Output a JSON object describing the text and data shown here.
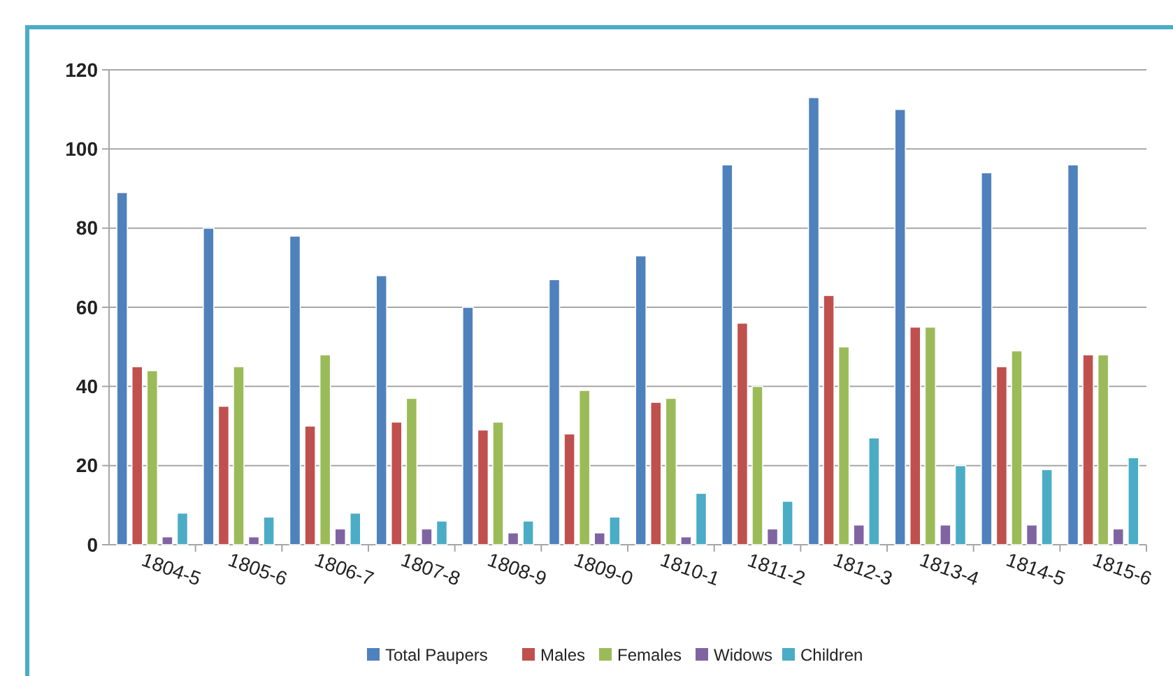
{
  "chart_data": {
    "type": "bar",
    "categories": [
      "1804-5",
      "1805-6",
      "1806-7",
      "1807-8",
      "1808-9",
      "1809-0",
      "1810-1",
      "1811-2",
      "1812-3",
      "1813-4",
      "1814-5",
      "1815-6"
    ],
    "series": [
      {
        "name": "Total Paupers",
        "color": "#4f81bd",
        "values": [
          89,
          80,
          78,
          68,
          60,
          67,
          73,
          96,
          113,
          110,
          94,
          96
        ]
      },
      {
        "name": "Males",
        "color": "#c0504d",
        "values": [
          45,
          35,
          30,
          31,
          29,
          28,
          36,
          56,
          63,
          55,
          45,
          48
        ]
      },
      {
        "name": "Females",
        "color": "#9bbb59",
        "values": [
          44,
          45,
          48,
          37,
          31,
          39,
          37,
          40,
          50,
          55,
          49,
          48
        ]
      },
      {
        "name": "Widows",
        "color": "#8064a2",
        "values": [
          2,
          2,
          4,
          4,
          3,
          3,
          2,
          4,
          5,
          5,
          5,
          4
        ]
      },
      {
        "name": "Children",
        "color": "#4bacc6",
        "values": [
          8,
          7,
          8,
          6,
          6,
          7,
          13,
          11,
          27,
          20,
          19,
          22
        ]
      }
    ],
    "ylim": [
      0,
      120
    ],
    "yticks": [
      0,
      20,
      40,
      60,
      80,
      100,
      120
    ],
    "grid": "y",
    "legend": "bottom"
  }
}
